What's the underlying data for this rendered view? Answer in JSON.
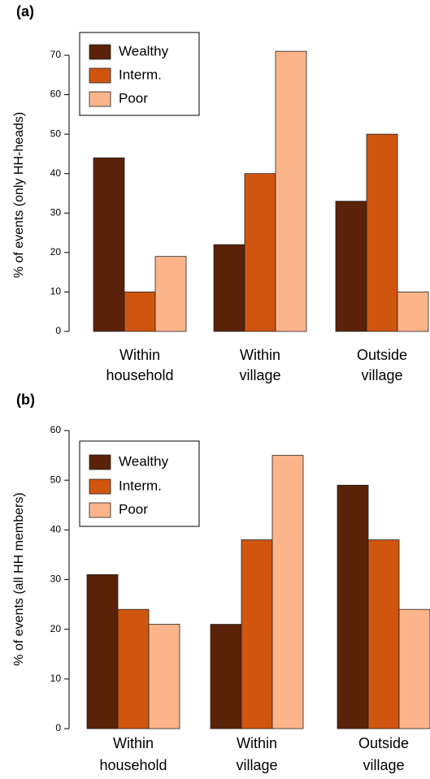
{
  "chart_data": [
    {
      "type": "bar",
      "label": "(a)",
      "ylabel": "% of events (only HH-heads)",
      "categories": [
        [
          "Within",
          "household"
        ],
        [
          "Within",
          "village"
        ],
        [
          "Outside",
          "village"
        ]
      ],
      "series": [
        {
          "name": "Wealthy",
          "color": "#5a2208",
          "values": [
            44,
            22,
            33
          ]
        },
        {
          "name": "Interm.",
          "color": "#d05610",
          "values": [
            10,
            40,
            50
          ]
        },
        {
          "name": "Poor",
          "color": "#fcb48a",
          "values": [
            19,
            71,
            10
          ]
        }
      ],
      "ylim": [
        0,
        70
      ],
      "yticks": [
        0,
        10,
        20,
        30,
        40,
        50,
        60,
        70
      ],
      "legend": "top-left"
    },
    {
      "type": "bar",
      "label": "(b)",
      "ylabel": "% of events (all HH members)",
      "categories": [
        [
          "Within",
          "household"
        ],
        [
          "Within",
          "village"
        ],
        [
          "Outside",
          "village"
        ]
      ],
      "series": [
        {
          "name": "Wealthy",
          "color": "#5a2208",
          "values": [
            31,
            21,
            49
          ]
        },
        {
          "name": "Interm.",
          "color": "#d05610",
          "values": [
            24,
            38,
            38
          ]
        },
        {
          "name": "Poor",
          "color": "#fcb48a",
          "values": [
            21,
            55,
            24
          ]
        }
      ],
      "ylim": [
        0,
        60
      ],
      "yticks": [
        0,
        10,
        20,
        30,
        40,
        50,
        60
      ],
      "legend": "top-left"
    }
  ]
}
